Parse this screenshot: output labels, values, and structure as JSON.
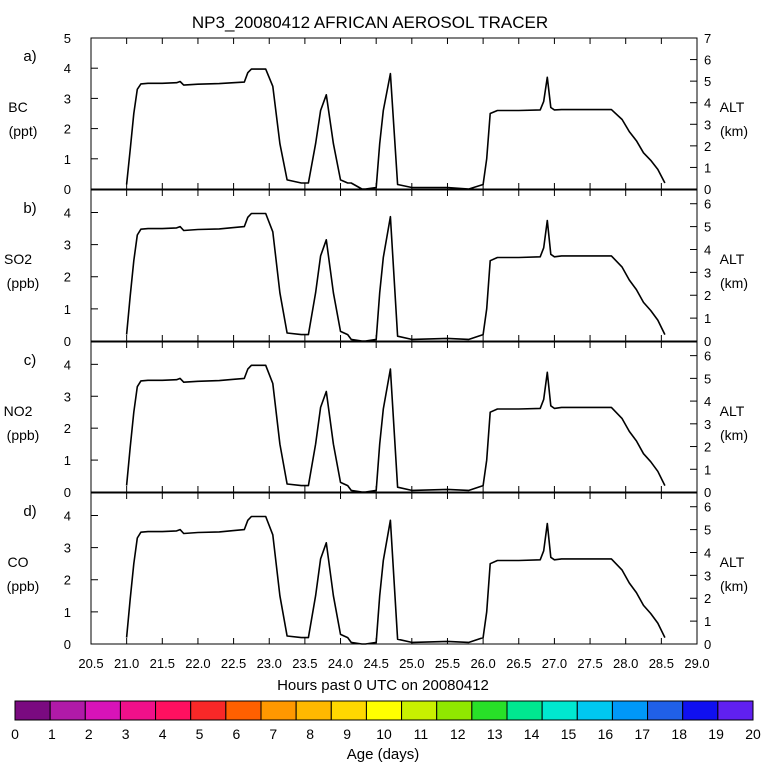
{
  "chart_data": {
    "type": "line",
    "title": "NP3_20080412 AFRICAN AEROSOL TRACER",
    "xlabel": "Hours past 0 UTC on 20080412",
    "xlim": [
      20.5,
      29.0
    ],
    "x_ticks": [
      "20.5",
      "21.0",
      "21.5",
      "22.0",
      "22.5",
      "23.0",
      "23.5",
      "24.0",
      "24.5",
      "25.0",
      "25.5",
      "26.0",
      "26.5",
      "27.0",
      "27.5",
      "28.0",
      "28.5",
      "29.0"
    ],
    "grid": false,
    "panels": [
      {
        "panel_label": "a)",
        "left_label_line1": "BC",
        "left_label_line2": "(ppt)",
        "right_label_line1": "ALT",
        "right_label_line2": "(km)",
        "ylim_left": [
          0,
          5
        ],
        "ylim_right": [
          0,
          7
        ],
        "left_ticks": [
          "0",
          "1",
          "2",
          "3",
          "4",
          "5"
        ],
        "right_ticks": [
          "0",
          "1",
          "2",
          "3",
          "4",
          "5",
          "6",
          "7"
        ],
        "series": [
          {
            "name": "",
            "x": [
              21.0,
              21.05,
              21.1,
              21.15,
              21.2,
              21.3,
              21.5,
              21.7,
              21.75,
              21.8,
              22.0,
              22.3,
              22.5,
              22.65,
              22.7,
              22.75,
              22.8,
              22.95,
              23.05,
              23.15,
              23.25,
              23.45,
              23.55,
              23.65,
              23.72,
              23.8,
              23.9,
              24.0,
              24.1,
              24.15,
              24.3,
              24.35,
              24.5,
              24.55,
              24.6,
              24.7,
              24.8,
              25.0,
              25.5,
              25.8,
              26.0,
              26.05,
              26.1,
              26.2,
              26.5,
              26.8,
              26.85,
              26.9,
              26.95,
              27.0,
              27.1,
              27.5,
              27.8,
              27.95,
              28.05,
              28.15,
              28.25,
              28.35,
              28.45,
              28.55
            ],
            "values": [
              0.15,
              1.3,
              2.5,
              3.3,
              3.48,
              3.5,
              3.5,
              3.52,
              3.56,
              3.44,
              3.47,
              3.49,
              3.52,
              3.54,
              3.85,
              3.97,
              3.97,
              3.97,
              3.4,
              1.5,
              0.3,
              0.2,
              0.2,
              1.5,
              2.6,
              3.12,
              1.5,
              0.3,
              0.2,
              0.2,
              0.0,
              0.0,
              0.05,
              1.5,
              2.6,
              3.82,
              0.15,
              0.05,
              0.05,
              0.0,
              0.15,
              1.0,
              2.5,
              2.6,
              2.6,
              2.62,
              2.9,
              3.7,
              2.7,
              2.62,
              2.63,
              2.63,
              2.63,
              2.3,
              1.9,
              1.6,
              1.2,
              0.95,
              0.65,
              0.2
            ]
          }
        ]
      },
      {
        "panel_label": "b)",
        "left_label_line1": "SO2",
        "left_label_line2": "(ppb)",
        "right_label_line1": "ALT",
        "right_label_line2": "(km)",
        "ylim_left": [
          0,
          4.7
        ],
        "ylim_right": [
          0,
          6.6
        ],
        "left_ticks": [
          "0",
          "1",
          "2",
          "3",
          "4"
        ],
        "right_ticks": [
          "0",
          "1",
          "2",
          "3",
          "4",
          "5",
          "6"
        ],
        "series": [
          {
            "name": "",
            "x": [
              21.0,
              21.05,
              21.1,
              21.15,
              21.2,
              21.3,
              21.5,
              21.7,
              21.75,
              21.8,
              22.0,
              22.3,
              22.5,
              22.65,
              22.7,
              22.75,
              22.8,
              22.95,
              23.05,
              23.15,
              23.25,
              23.45,
              23.55,
              23.65,
              23.72,
              23.8,
              23.9,
              24.0,
              24.1,
              24.15,
              24.3,
              24.35,
              24.5,
              24.55,
              24.6,
              24.7,
              24.8,
              25.0,
              25.5,
              25.8,
              26.0,
              26.05,
              26.1,
              26.2,
              26.5,
              26.8,
              26.85,
              26.9,
              26.95,
              27.0,
              27.1,
              27.5,
              27.8,
              27.95,
              28.05,
              28.15,
              28.25,
              28.35,
              28.45,
              28.55
            ],
            "values": [
              0.2,
              1.4,
              2.5,
              3.3,
              3.48,
              3.5,
              3.5,
              3.52,
              3.56,
              3.44,
              3.47,
              3.49,
              3.53,
              3.56,
              3.85,
              3.97,
              3.97,
              3.97,
              3.4,
              1.5,
              0.25,
              0.2,
              0.2,
              1.5,
              2.65,
              3.15,
              1.5,
              0.3,
              0.2,
              0.05,
              0.0,
              0.0,
              0.05,
              1.5,
              2.6,
              3.87,
              0.15,
              0.05,
              0.08,
              0.05,
              0.2,
              1.0,
              2.5,
              2.6,
              2.6,
              2.62,
              2.9,
              3.75,
              2.7,
              2.62,
              2.65,
              2.65,
              2.65,
              2.3,
              1.9,
              1.6,
              1.2,
              0.95,
              0.65,
              0.2
            ]
          }
        ]
      },
      {
        "panel_label": "c)",
        "left_label_line1": "NO2",
        "left_label_line2": "(ppb)",
        "right_label_line1": "ALT",
        "right_label_line2": "(km)",
        "ylim_left": [
          0,
          4.7
        ],
        "ylim_right": [
          0,
          6.6
        ],
        "left_ticks": [
          "0",
          "1",
          "2",
          "3",
          "4"
        ],
        "right_ticks": [
          "0",
          "1",
          "2",
          "3",
          "4",
          "5",
          "6"
        ],
        "series": [
          {
            "name": "",
            "x": [
              21.0,
              21.05,
              21.1,
              21.15,
              21.2,
              21.3,
              21.5,
              21.7,
              21.75,
              21.8,
              22.0,
              22.3,
              22.5,
              22.65,
              22.7,
              22.75,
              22.8,
              22.95,
              23.05,
              23.15,
              23.25,
              23.45,
              23.55,
              23.65,
              23.72,
              23.8,
              23.9,
              24.0,
              24.1,
              24.15,
              24.3,
              24.35,
              24.5,
              24.55,
              24.6,
              24.7,
              24.8,
              25.0,
              25.5,
              25.8,
              26.0,
              26.05,
              26.1,
              26.2,
              26.5,
              26.8,
              26.85,
              26.9,
              26.95,
              27.0,
              27.1,
              27.5,
              27.8,
              27.95,
              28.05,
              28.15,
              28.25,
              28.35,
              28.45,
              28.55
            ],
            "values": [
              0.2,
              1.4,
              2.5,
              3.3,
              3.48,
              3.5,
              3.5,
              3.52,
              3.56,
              3.44,
              3.47,
              3.49,
              3.53,
              3.56,
              3.85,
              3.97,
              3.97,
              3.97,
              3.4,
              1.5,
              0.25,
              0.2,
              0.2,
              1.5,
              2.65,
              3.15,
              1.5,
              0.3,
              0.2,
              0.05,
              0.0,
              0.0,
              0.05,
              1.5,
              2.6,
              3.85,
              0.15,
              0.05,
              0.08,
              0.05,
              0.2,
              1.0,
              2.5,
              2.6,
              2.6,
              2.62,
              2.9,
              3.75,
              2.7,
              2.62,
              2.65,
              2.65,
              2.65,
              2.3,
              1.9,
              1.6,
              1.2,
              0.95,
              0.65,
              0.2
            ]
          }
        ]
      },
      {
        "panel_label": "d)",
        "left_label_line1": "CO",
        "left_label_line2": "(ppb)",
        "right_label_line1": "ALT",
        "right_label_line2": "(km)",
        "ylim_left": [
          0,
          4.7
        ],
        "ylim_right": [
          0,
          6.6
        ],
        "left_ticks": [
          "0",
          "1",
          "2",
          "3",
          "4"
        ],
        "right_ticks": [
          "0",
          "1",
          "2",
          "3",
          "4",
          "5",
          "6"
        ],
        "series": [
          {
            "name": "",
            "x": [
              21.0,
              21.05,
              21.1,
              21.15,
              21.2,
              21.3,
              21.5,
              21.7,
              21.75,
              21.8,
              22.0,
              22.3,
              22.5,
              22.65,
              22.7,
              22.75,
              22.8,
              22.95,
              23.05,
              23.15,
              23.25,
              23.45,
              23.55,
              23.65,
              23.72,
              23.8,
              23.9,
              24.0,
              24.1,
              24.15,
              24.3,
              24.35,
              24.5,
              24.55,
              24.6,
              24.7,
              24.8,
              25.0,
              25.5,
              25.8,
              26.0,
              26.05,
              26.1,
              26.2,
              26.5,
              26.8,
              26.85,
              26.9,
              26.95,
              27.0,
              27.1,
              27.5,
              27.8,
              27.95,
              28.05,
              28.15,
              28.25,
              28.35,
              28.45,
              28.55
            ],
            "values": [
              0.2,
              1.4,
              2.5,
              3.3,
              3.48,
              3.5,
              3.5,
              3.52,
              3.56,
              3.44,
              3.47,
              3.49,
              3.53,
              3.56,
              3.85,
              3.97,
              3.97,
              3.97,
              3.4,
              1.5,
              0.25,
              0.2,
              0.2,
              1.5,
              2.65,
              3.15,
              1.5,
              0.3,
              0.2,
              0.05,
              0.0,
              0.0,
              0.05,
              1.5,
              2.6,
              3.85,
              0.15,
              0.05,
              0.08,
              0.05,
              0.2,
              1.0,
              2.5,
              2.6,
              2.6,
              2.62,
              2.9,
              3.75,
              2.7,
              2.62,
              2.65,
              2.65,
              2.65,
              2.3,
              1.9,
              1.6,
              1.2,
              0.95,
              0.65,
              0.2
            ]
          }
        ]
      }
    ],
    "colorbar": {
      "label": "Age (days)",
      "ticks": [
        "0",
        "1",
        "2",
        "3",
        "4",
        "5",
        "6",
        "7",
        "8",
        "9",
        "10",
        "11",
        "12",
        "13",
        "14",
        "15",
        "16",
        "17",
        "18",
        "19",
        "20"
      ],
      "colors": [
        "#7a0a80",
        "#b01aa8",
        "#d813b8",
        "#f0108a",
        "#ff1060",
        "#f82828",
        "#ff6000",
        "#ff9800",
        "#ffb800",
        "#ffd800",
        "#ffff00",
        "#c8f000",
        "#90e800",
        "#28e028",
        "#00e890",
        "#00e8d0",
        "#00c8f0",
        "#0098f8",
        "#2060e8",
        "#1010f0",
        "#6020f0"
      ]
    }
  }
}
